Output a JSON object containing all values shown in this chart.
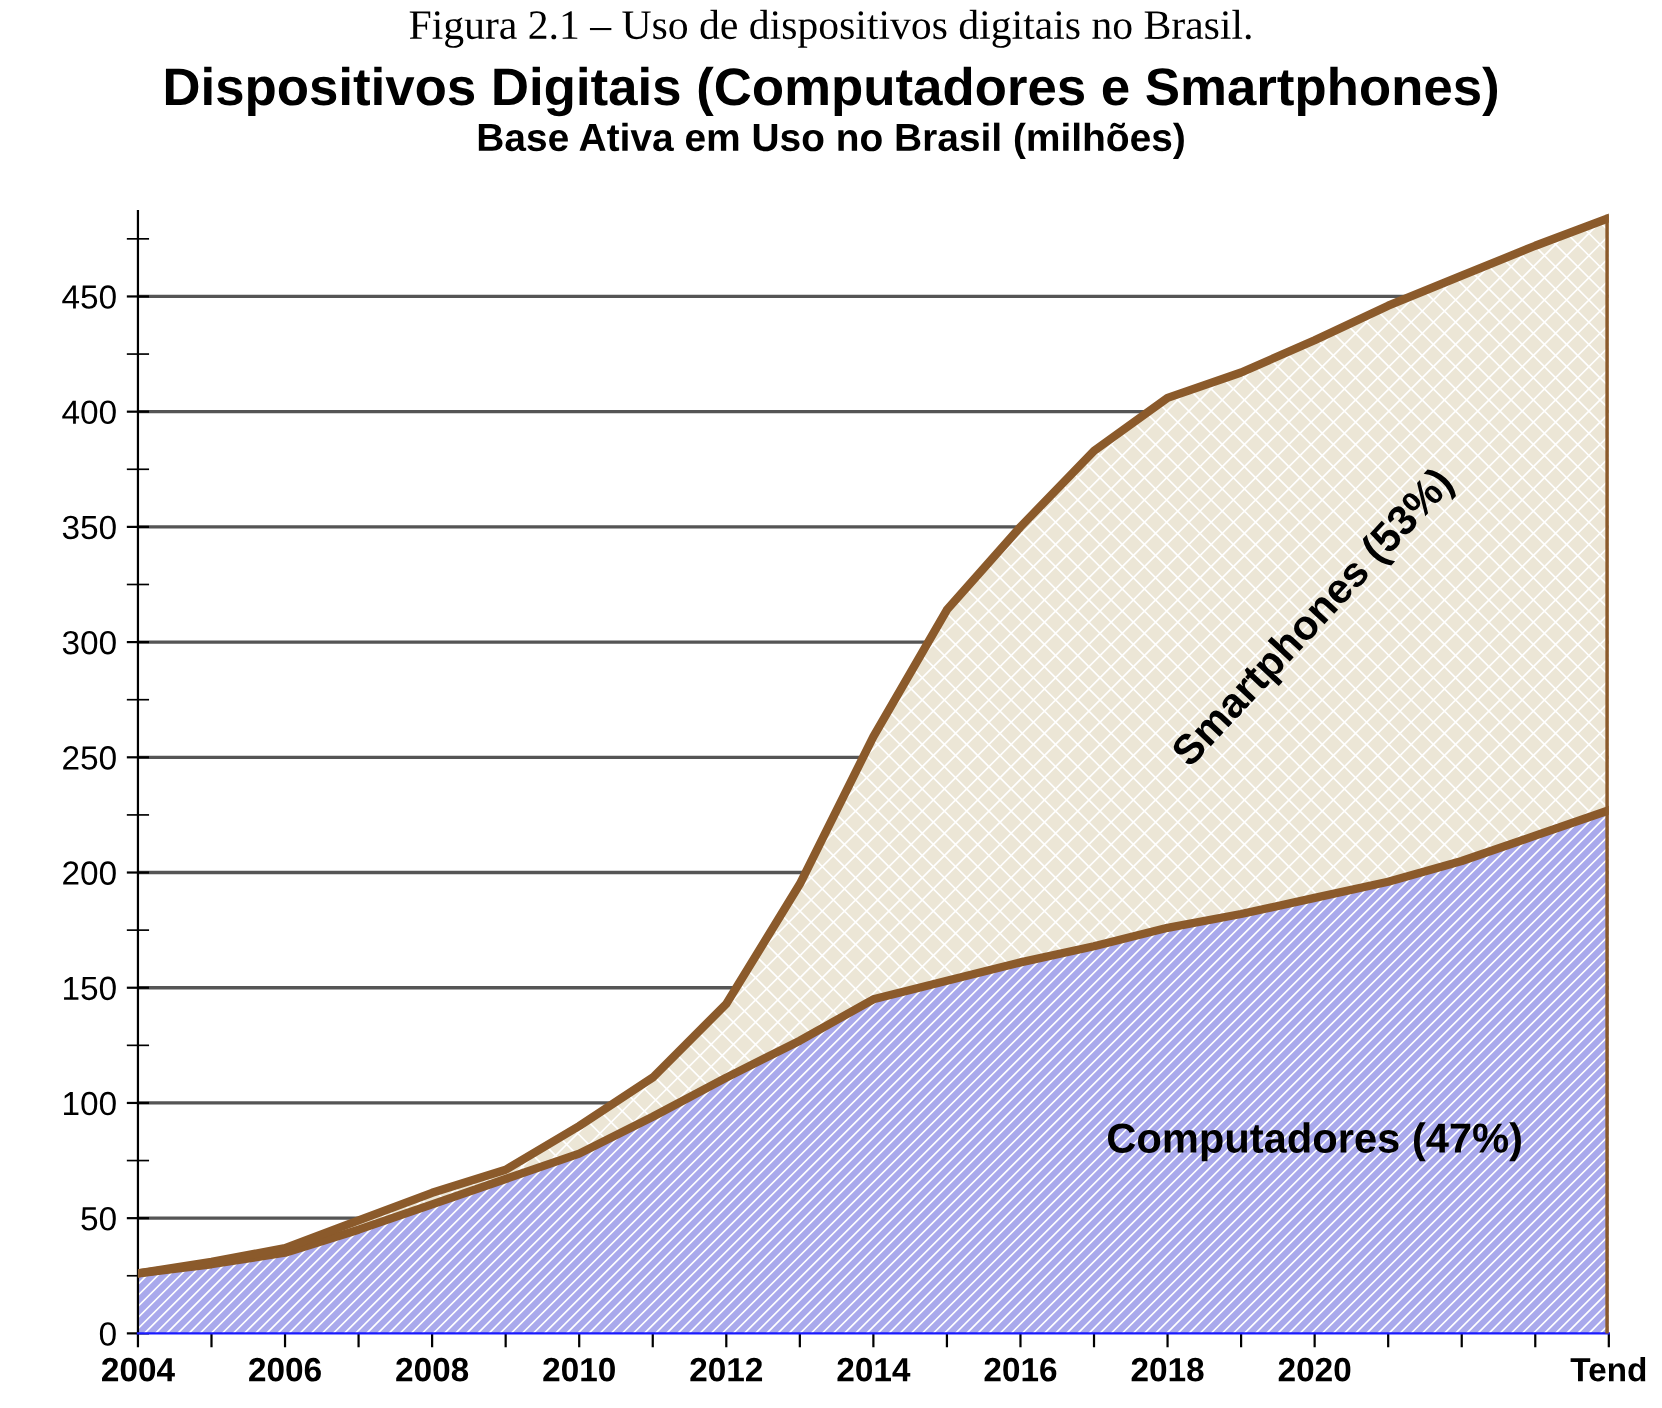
{
  "chart_data": {
    "type": "area",
    "stacked": true,
    "title": "Dispositivos Digitais (Computadores e Smartphones)",
    "subtitle": "Base Ativa em Uso no Brasil (milhões)",
    "annotations": [
      "Figura 2.1 – Uso de dispositivos digitais no Brasil."
    ],
    "categories": [
      "2004",
      null,
      "2006",
      null,
      "2008",
      null,
      "2010",
      null,
      "2012",
      null,
      "2014",
      null,
      "2016",
      null,
      "2018",
      null,
      "2020",
      null,
      null,
      null,
      "Tend"
    ],
    "series": [
      {
        "name": "Computadores (47%)",
        "color": "#a9a9ec",
        "values": [
          26,
          30,
          35,
          45,
          56,
          67,
          78,
          94,
          111,
          127,
          145,
          153,
          161,
          168,
          176,
          182,
          189,
          196,
          205,
          216,
          227
        ]
      },
      {
        "name": "Smartphones (53%)",
        "color": "#ece6d6",
        "values": [
          0,
          1,
          2,
          4,
          5,
          4,
          12,
          17,
          32,
          68,
          114,
          161,
          189,
          215,
          230,
          235,
          242,
          250,
          254,
          256,
          257
        ]
      }
    ],
    "ylim": [
      0,
      487
    ],
    "yticks": [
      0,
      50,
      100,
      150,
      200,
      250,
      300,
      350,
      400,
      450
    ],
    "grid": "y",
    "legend": false
  }
}
